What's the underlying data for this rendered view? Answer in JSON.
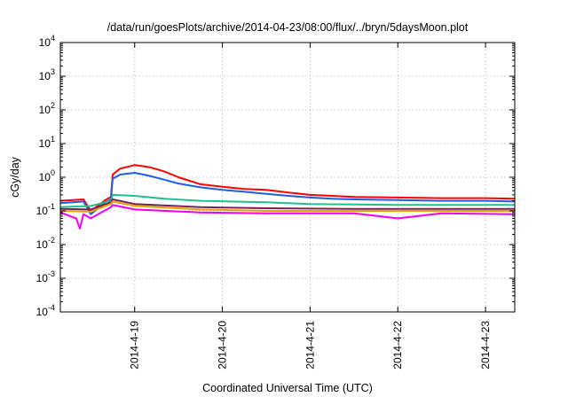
{
  "chart_data": {
    "type": "line",
    "title": "/data/run/goesPlots/archive/2014-04-23/08:00/flux/../bryn/5daysMoon.plot",
    "xlabel": "Coordinated Universal Time (UTC)",
    "ylabel": "cGy/day",
    "yscale": "log",
    "ylim": [
      0.0001,
      10000
    ],
    "yticks": [
      {
        "base": "10",
        "exp": "4",
        "value": 10000
      },
      {
        "base": "10",
        "exp": "3",
        "value": 1000
      },
      {
        "base": "10",
        "exp": "2",
        "value": 100
      },
      {
        "base": "10",
        "exp": "1",
        "value": 10
      },
      {
        "base": "10",
        "exp": "0",
        "value": 1
      },
      {
        "base": "10",
        "exp": "-1",
        "value": 0.1
      },
      {
        "base": "10",
        "exp": "-2",
        "value": 0.01
      },
      {
        "base": "10",
        "exp": "-3",
        "value": 0.001
      },
      {
        "base": "10",
        "exp": "-4",
        "value": 0.0001
      }
    ],
    "xlim": [
      "2014-04-18 03:40",
      "2014-04-23 08:00"
    ],
    "xticks": [
      {
        "label": "2014-4-19",
        "value": "2014-04-19 00:00"
      },
      {
        "label": "2014-4-20",
        "value": "2014-04-20 00:00"
      },
      {
        "label": "2014-4-21",
        "value": "2014-04-21 00:00"
      },
      {
        "label": "2014-4-22",
        "value": "2014-04-22 00:00"
      },
      {
        "label": "2014-4-23",
        "value": "2014-04-23 00:00"
      }
    ],
    "grid": true,
    "legend": "none",
    "series": [
      {
        "color": "#ff0000",
        "points": [
          [
            "2014-04-18 03:40",
            0.2
          ],
          [
            "2014-04-18 10:00",
            0.22
          ],
          [
            "2014-04-18 12:00",
            0.1
          ],
          [
            "2014-04-18 16:00",
            0.21
          ],
          [
            "2014-04-18 17:30",
            0.26
          ],
          [
            "2014-04-18 18:00",
            1.2
          ],
          [
            "2014-04-18 20:00",
            1.8
          ],
          [
            "2014-04-19 00:00",
            2.3
          ],
          [
            "2014-04-19 04:00",
            2.0
          ],
          [
            "2014-04-19 08:00",
            1.5
          ],
          [
            "2014-04-19 12:00",
            1.0
          ],
          [
            "2014-04-19 18:00",
            0.62
          ],
          [
            "2014-04-20 00:00",
            0.52
          ],
          [
            "2014-04-20 06:00",
            0.45
          ],
          [
            "2014-04-20 12:00",
            0.42
          ],
          [
            "2014-04-20 18:00",
            0.35
          ],
          [
            "2014-04-21 00:00",
            0.3
          ],
          [
            "2014-04-21 06:00",
            0.28
          ],
          [
            "2014-04-21 12:00",
            0.26
          ],
          [
            "2014-04-22 00:00",
            0.25
          ],
          [
            "2014-04-22 12:00",
            0.24
          ],
          [
            "2014-04-23 00:00",
            0.24
          ],
          [
            "2014-04-23 08:00",
            0.23
          ]
        ]
      },
      {
        "color": "#1e5ee6",
        "points": [
          [
            "2014-04-18 03:40",
            0.17
          ],
          [
            "2014-04-18 10:00",
            0.19
          ],
          [
            "2014-04-18 12:00",
            0.08
          ],
          [
            "2014-04-18 16:00",
            0.18
          ],
          [
            "2014-04-18 17:30",
            0.22
          ],
          [
            "2014-04-18 18:00",
            0.9
          ],
          [
            "2014-04-18 20:00",
            1.2
          ],
          [
            "2014-04-19 00:00",
            1.35
          ],
          [
            "2014-04-19 04:00",
            1.1
          ],
          [
            "2014-04-19 08:00",
            0.85
          ],
          [
            "2014-04-19 12:00",
            0.65
          ],
          [
            "2014-04-19 18:00",
            0.5
          ],
          [
            "2014-04-20 00:00",
            0.42
          ],
          [
            "2014-04-20 06:00",
            0.37
          ],
          [
            "2014-04-20 12:00",
            0.32
          ],
          [
            "2014-04-20 18:00",
            0.28
          ],
          [
            "2014-04-21 00:00",
            0.25
          ],
          [
            "2014-04-21 06:00",
            0.23
          ],
          [
            "2014-04-21 12:00",
            0.22
          ],
          [
            "2014-04-22 00:00",
            0.21
          ],
          [
            "2014-04-22 12:00",
            0.2
          ],
          [
            "2014-04-23 00:00",
            0.2
          ],
          [
            "2014-04-23 08:00",
            0.19
          ]
        ]
      },
      {
        "color": "#1fc08c",
        "points": [
          [
            "2014-04-18 03:40",
            0.13
          ],
          [
            "2014-04-18 12:00",
            0.14
          ],
          [
            "2014-04-18 17:30",
            0.2
          ],
          [
            "2014-04-18 18:00",
            0.3
          ],
          [
            "2014-04-19 00:00",
            0.28
          ],
          [
            "2014-04-19 08:00",
            0.23
          ],
          [
            "2014-04-19 18:00",
            0.2
          ],
          [
            "2014-04-20 12:00",
            0.18
          ],
          [
            "2014-04-21 00:00",
            0.16
          ],
          [
            "2014-04-22 00:00",
            0.15
          ],
          [
            "2014-04-23 08:00",
            0.15
          ]
        ]
      },
      {
        "color": "#7a1f5c",
        "points": [
          [
            "2014-04-18 03:40",
            0.115
          ],
          [
            "2014-04-18 12:00",
            0.11
          ],
          [
            "2014-04-18 17:30",
            0.18
          ],
          [
            "2014-04-18 18:00",
            0.22
          ],
          [
            "2014-04-19 00:00",
            0.16
          ],
          [
            "2014-04-19 18:00",
            0.13
          ],
          [
            "2014-04-20 12:00",
            0.12
          ],
          [
            "2014-04-21 12:00",
            0.115
          ],
          [
            "2014-04-22 12:00",
            0.115
          ],
          [
            "2014-04-23 08:00",
            0.115
          ]
        ]
      },
      {
        "color": "#e6a300",
        "points": [
          [
            "2014-04-18 03:40",
            0.1
          ],
          [
            "2014-04-18 12:00",
            0.095
          ],
          [
            "2014-04-18 17:30",
            0.16
          ],
          [
            "2014-04-18 18:00",
            0.19
          ],
          [
            "2014-04-19 00:00",
            0.14
          ],
          [
            "2014-04-19 18:00",
            0.11
          ],
          [
            "2014-04-20 12:00",
            0.1
          ],
          [
            "2014-04-21 12:00",
            0.1
          ],
          [
            "2014-04-22 12:00",
            0.1
          ],
          [
            "2014-04-23 08:00",
            0.1
          ]
        ]
      },
      {
        "color": "#f000f0",
        "points": [
          [
            "2014-04-18 03:40",
            0.09
          ],
          [
            "2014-04-18 08:00",
            0.06
          ],
          [
            "2014-04-18 09:00",
            0.03
          ],
          [
            "2014-04-18 10:00",
            0.08
          ],
          [
            "2014-04-18 12:00",
            0.06
          ],
          [
            "2014-04-18 17:30",
            0.13
          ],
          [
            "2014-04-18 18:00",
            0.15
          ],
          [
            "2014-04-19 00:00",
            0.11
          ],
          [
            "2014-04-19 18:00",
            0.09
          ],
          [
            "2014-04-20 12:00",
            0.085
          ],
          [
            "2014-04-21 12:00",
            0.085
          ],
          [
            "2014-04-22 00:00",
            0.06
          ],
          [
            "2014-04-22 12:00",
            0.085
          ],
          [
            "2014-04-23 08:00",
            0.08
          ]
        ]
      }
    ]
  }
}
